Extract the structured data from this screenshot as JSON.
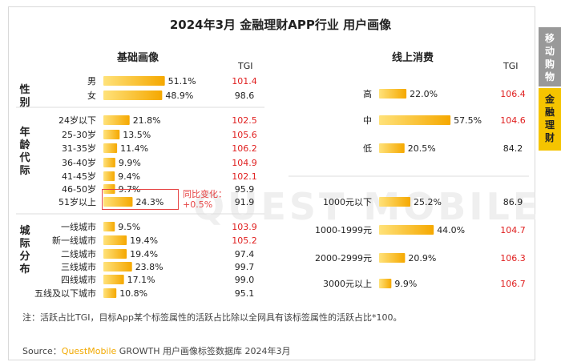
{
  "title": "2024年3月 金融理财APP行业 用户画像",
  "left_header": "基础画像",
  "right_header": "线上消费",
  "tgi_header": "TGI",
  "group_labels": {
    "gender": "性\n别",
    "age": "年\n龄\n代\n际",
    "city": "城\n际\n分\n布"
  },
  "annotation": "同比变化：\n+0.5%",
  "note": "注：活跃占比TGI，目标App某个标签属性的活跃占比除以全网具有该标签属性的活跃占比*100。",
  "source": {
    "prefix": "Source：",
    "brand": "QuestMobile",
    "rest": " GROWTH 用户画像标签数据库 2024年3月"
  },
  "watermark": "QUEST MOBILE",
  "side_tabs": [
    "移\n动\n购\n物",
    "金\n融\n理\n财"
  ],
  "colors": {
    "bar_start": "#ffe27a",
    "bar_end": "#f5a800",
    "tgi_high": "#e02020",
    "tgi_normal": "#222222",
    "accent": "#f5c400"
  },
  "chart_data": [
    {
      "type": "bar",
      "orientation": "horizontal",
      "title": "基础画像",
      "categories": [
        "男",
        "女",
        "24岁以下",
        "25-30岁",
        "31-35岁",
        "36-40岁",
        "41-45岁",
        "46-50岁",
        "51岁以上",
        "一线城市",
        "新一线城市",
        "二线城市",
        "三线城市",
        "四线城市",
        "五线及以下城市"
      ],
      "groups": [
        {
          "name": "性别",
          "categories": [
            "男",
            "女"
          ]
        },
        {
          "name": "年龄代际",
          "categories": [
            "24岁以下",
            "25-30岁",
            "31-35岁",
            "36-40岁",
            "41-45岁",
            "46-50岁",
            "51岁以上"
          ]
        },
        {
          "name": "城际分布",
          "categories": [
            "一线城市",
            "新一线城市",
            "二线城市",
            "三线城市",
            "四线城市",
            "五线及以下城市"
          ]
        }
      ],
      "values": [
        51.1,
        48.9,
        21.8,
        13.5,
        11.4,
        9.9,
        9.4,
        9.7,
        24.3,
        9.5,
        19.4,
        19.4,
        23.8,
        17.1,
        10.8
      ],
      "value_labels": [
        "51.1%",
        "48.9%",
        "21.8%",
        "13.5%",
        "11.4%",
        "9.9%",
        "9.4%",
        "9.7%",
        "24.3%",
        "9.5%",
        "19.4%",
        "19.4%",
        "23.8%",
        "17.1%",
        "10.8%"
      ],
      "tgi": [
        "101.4",
        "98.6",
        "102.5",
        "105.6",
        "106.2",
        "104.9",
        "102.1",
        "95.9",
        "91.9",
        "103.9",
        "105.2",
        "97.4",
        "99.7",
        "99.0",
        "95.1"
      ],
      "unit": "%"
    },
    {
      "type": "bar",
      "orientation": "horizontal",
      "title": "线上消费",
      "categories": [
        "高",
        "中",
        "低",
        "1000元以下",
        "1000-1999元",
        "2000-2999元",
        "3000元以上"
      ],
      "values": [
        22.0,
        57.5,
        20.5,
        25.2,
        44.0,
        20.9,
        9.9
      ],
      "value_labels": [
        "22.0%",
        "57.5%",
        "20.5%",
        "25.2%",
        "44.0%",
        "20.9%",
        "9.9%"
      ],
      "tgi": [
        "106.4",
        "104.6",
        "84.2",
        "86.9",
        "104.7",
        "106.3",
        "106.7"
      ],
      "unit": "%"
    }
  ]
}
